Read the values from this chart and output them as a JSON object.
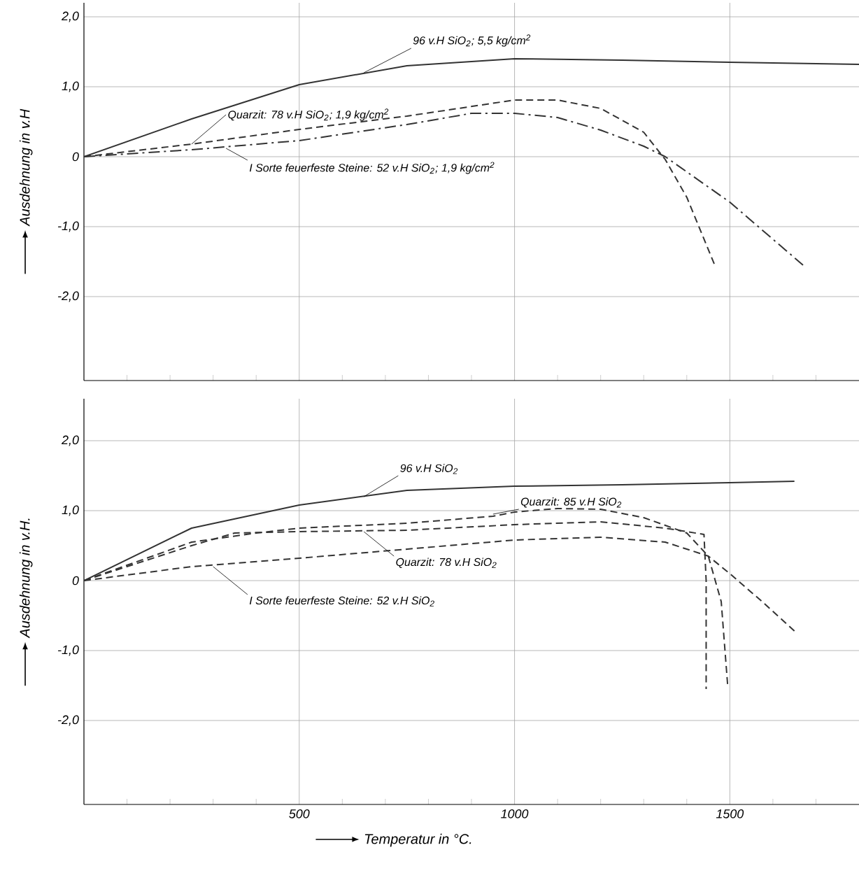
{
  "chart_data": [
    {
      "type": "line",
      "ylabel": "Ausdehnung in v.H",
      "xlim": [
        0,
        1800
      ],
      "ylim": [
        -3.2,
        2.2
      ],
      "grid": true,
      "tick_labels": "y",
      "marker": "none",
      "xticks": [
        {
          "value": 100,
          "label": null
        },
        {
          "value": 200,
          "label": null
        },
        {
          "value": 300,
          "label": null
        },
        {
          "value": 400,
          "label": null
        },
        500,
        {
          "value": 600,
          "label": null
        },
        {
          "value": 700,
          "label": null
        },
        {
          "value": 800,
          "label": null
        },
        {
          "value": 900,
          "label": null
        },
        1000,
        {
          "value": 1100,
          "label": null
        },
        {
          "value": 1200,
          "label": null
        },
        {
          "value": 1300,
          "label": null
        },
        {
          "value": 1400,
          "label": null
        },
        1500,
        {
          "value": 1600,
          "label": null
        },
        {
          "value": 1700,
          "label": null
        }
      ],
      "yticks": [
        {
          "value": -2,
          "label": "-2,0"
        },
        {
          "value": -1,
          "label": "-1,0"
        },
        0,
        {
          "value": 1,
          "label": "1,0"
        },
        {
          "value": 2,
          "label": "2,0"
        }
      ],
      "series": [
        {
          "color": "#333333",
          "line_style": "solid",
          "x": [
            0,
            250,
            500,
            750,
            1000,
            1250,
            1500,
            1800
          ],
          "values": [
            0,
            0.54,
            1.03,
            1.3,
            1.4,
            1.38,
            1.35,
            1.32
          ]
        },
        {
          "color": "#333333",
          "line_style": "dashed",
          "x": [
            0,
            250,
            500,
            750,
            1000,
            1100,
            1200,
            1300,
            1350,
            1400,
            1465
          ],
          "values": [
            0,
            0.18,
            0.39,
            0.58,
            0.81,
            0.81,
            0.69,
            0.35,
            -0.04,
            -0.58,
            -1.55
          ]
        },
        {
          "color": "#333333",
          "line_style": "dashdot",
          "x": [
            0,
            250,
            500,
            750,
            900,
            1000,
            1100,
            1200,
            1300,
            1350,
            1500,
            1670
          ],
          "values": [
            0,
            0.1,
            0.23,
            0.46,
            0.62,
            0.62,
            0.56,
            0.38,
            0.15,
            0,
            -0.65,
            -1.55
          ]
        }
      ],
      "annotations": [
        {
          "text": "96 v.H SiO$_{2}$; 5,5 kg/cm$^{2}$",
          "x": 650,
          "y": 1.2
        },
        {
          "text": "Quarzit: 78 v.H SiO$_{2}$; 1,9 kg/cm$^{2}$",
          "x": 250,
          "y": 0.18
        },
        {
          "text": "I Sorte feuerfeste Steine: 52 v.H SiO$_{2}$; 1,9 kg/cm$^{2}$",
          "x": 330,
          "y": 0.12
        }
      ]
    },
    {
      "type": "line",
      "xlabel": "Temperatur in °C.",
      "ylabel": "Ausdehnung in v.H.",
      "xlim": [
        0,
        1800
      ],
      "ylim": [
        -3.2,
        2.6
      ],
      "grid": true,
      "marker": "none",
      "xticks": [
        {
          "value": 100,
          "label": null
        },
        {
          "value": 200,
          "label": null
        },
        {
          "value": 300,
          "label": null
        },
        {
          "value": 400,
          "label": null
        },
        500,
        {
          "value": 600,
          "label": null
        },
        {
          "value": 700,
          "label": null
        },
        {
          "value": 800,
          "label": null
        },
        {
          "value": 900,
          "label": null
        },
        1000,
        {
          "value": 1100,
          "label": null
        },
        {
          "value": 1200,
          "label": null
        },
        {
          "value": 1300,
          "label": null
        },
        {
          "value": 1400,
          "label": null
        },
        1500,
        {
          "value": 1600,
          "label": null
        },
        {
          "value": 1700,
          "label": null
        }
      ],
      "yticks": [
        {
          "value": -2,
          "label": "-2,0"
        },
        {
          "value": -1,
          "label": "-1,0"
        },
        0,
        {
          "value": 1,
          "label": "1,0"
        },
        {
          "value": 2,
          "label": "2,0"
        }
      ],
      "series": [
        {
          "color": "#333333",
          "line_style": "solid",
          "x": [
            0,
            250,
            500,
            750,
            1000,
            1250,
            1500,
            1650
          ],
          "values": [
            0,
            0.75,
            1.08,
            1.29,
            1.35,
            1.37,
            1.4,
            1.42
          ]
        },
        {
          "color": "#333333",
          "line_style": "dashed",
          "x": [
            0,
            250,
            400,
            500,
            750,
            950,
            1000,
            1100,
            1200,
            1300,
            1400,
            1450,
            1480,
            1495
          ],
          "values": [
            0,
            0.55,
            0.68,
            0.75,
            0.82,
            0.92,
            0.98,
            1.03,
            1.02,
            0.9,
            0.68,
            0.35,
            -0.3,
            -1.5
          ]
        },
        {
          "color": "#333333",
          "line_style": "dashed",
          "x": [
            0,
            250,
            350,
            500,
            750,
            1000,
            1200,
            1350,
            1440,
            1445,
            1445
          ],
          "values": [
            0,
            0.5,
            0.68,
            0.7,
            0.72,
            0.8,
            0.84,
            0.75,
            0.66,
            0,
            -1.55
          ]
        },
        {
          "color": "#333333",
          "line_style": "dashed",
          "x": [
            0,
            250,
            500,
            750,
            1000,
            1200,
            1350,
            1450,
            1500,
            1575,
            1650
          ],
          "values": [
            0,
            0.2,
            0.32,
            0.45,
            0.58,
            0.62,
            0.55,
            0.35,
            0.1,
            -0.3,
            -0.72
          ]
        }
      ],
      "annotations": [
        {
          "text": "96 v.H SiO$_{2}$",
          "x": 650,
          "y": 1.2
        },
        {
          "text": "Quarzit: 85 v.H SiO$_{2}$",
          "x": 950,
          "y": 0.95
        },
        {
          "text": "Quarzit: 78 v.H SiO$_{2}$",
          "x": 650,
          "y": 0.7
        },
        {
          "text": "I Sorte feuerfeste Steine: 52 v.H SiO$_{2}$",
          "x": 300,
          "y": 0.2
        }
      ]
    }
  ]
}
